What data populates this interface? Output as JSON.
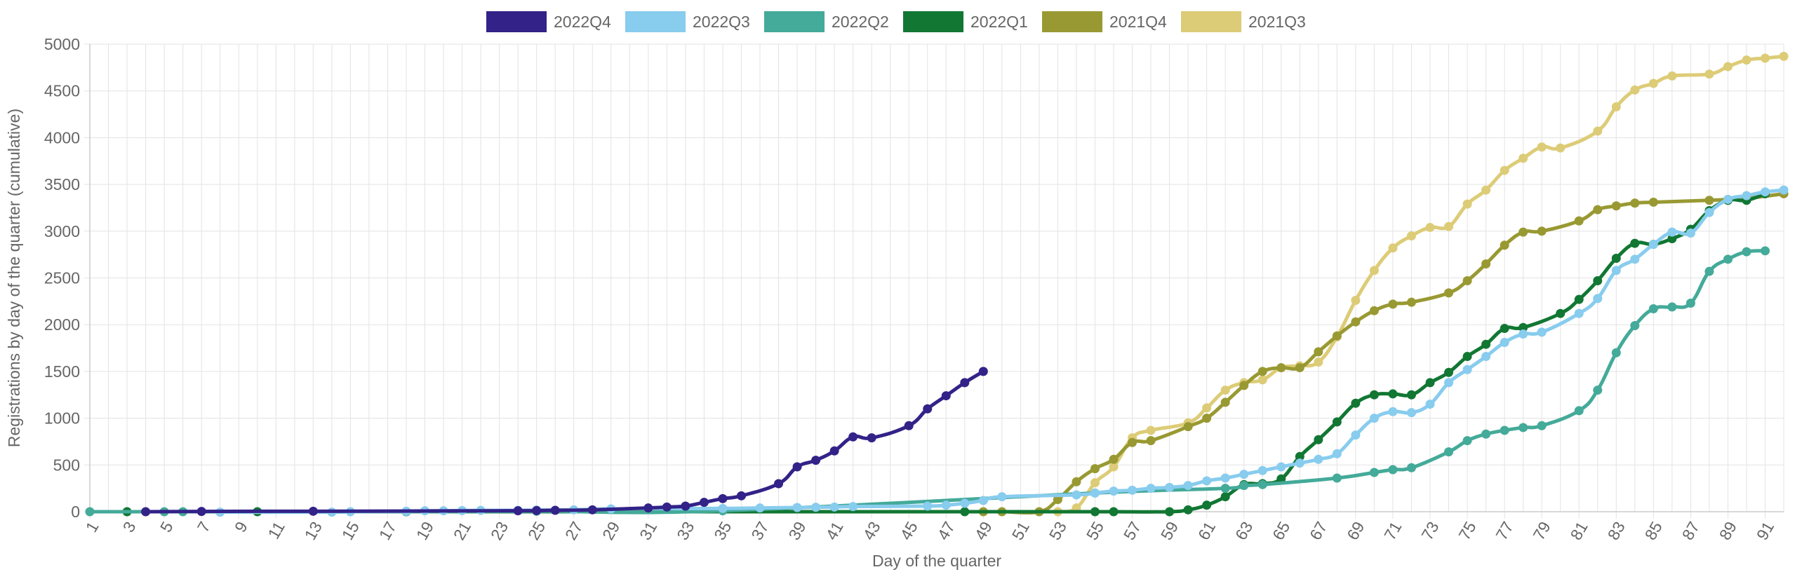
{
  "chart_data": {
    "type": "line",
    "xlabel": "Day of the quarter",
    "ylabel": "Registrations by day of the quarter (cumulative)",
    "xlim": [
      1,
      92
    ],
    "ylim": [
      0,
      5000
    ],
    "x_ticks": [
      "1",
      "3",
      "5",
      "7",
      "9",
      "11",
      "13",
      "15",
      "17",
      "19",
      "21",
      "23",
      "25",
      "27",
      "29",
      "31",
      "33",
      "35",
      "37",
      "39",
      "41",
      "43",
      "45",
      "47",
      "49",
      "51",
      "53",
      "55",
      "57",
      "59",
      "61",
      "63",
      "65",
      "67",
      "69",
      "71",
      "73",
      "75",
      "77",
      "79",
      "81",
      "83",
      "85",
      "87",
      "89",
      "91"
    ],
    "y_ticks": [
      "0",
      "500",
      "1000",
      "1500",
      "2000",
      "2500",
      "3000",
      "3500",
      "4000",
      "4500",
      "5000"
    ],
    "grid": true,
    "legend_position": "top-center",
    "series": [
      {
        "name": "2022Q4",
        "color": "#332288",
        "points": [
          [
            4,
            0
          ],
          [
            7,
            3
          ],
          [
            13,
            5
          ],
          [
            24,
            10
          ],
          [
            25,
            12
          ],
          [
            26,
            15
          ],
          [
            28,
            20
          ],
          [
            31,
            40
          ],
          [
            32,
            50
          ],
          [
            33,
            60
          ],
          [
            34,
            100
          ],
          [
            35,
            140
          ],
          [
            36,
            170
          ],
          [
            38,
            300
          ],
          [
            39,
            480
          ],
          [
            40,
            550
          ],
          [
            41,
            650
          ],
          [
            42,
            800
          ],
          [
            43,
            790
          ],
          [
            45,
            920
          ],
          [
            46,
            1100
          ],
          [
            47,
            1240
          ],
          [
            48,
            1380
          ],
          [
            49,
            1500
          ]
        ]
      },
      {
        "name": "2022Q3",
        "color": "#88ccee",
        "points": [
          [
            8,
            -5
          ],
          [
            14,
            -5
          ],
          [
            15,
            0
          ],
          [
            18,
            5
          ],
          [
            19,
            10
          ],
          [
            20,
            10
          ],
          [
            21,
            12
          ],
          [
            22,
            14
          ],
          [
            24,
            15
          ],
          [
            25,
            18
          ],
          [
            27,
            20
          ],
          [
            29,
            30
          ],
          [
            35,
            35
          ],
          [
            37,
            40
          ],
          [
            39,
            45
          ],
          [
            40,
            48
          ],
          [
            41,
            50
          ],
          [
            42,
            55
          ],
          [
            46,
            60
          ],
          [
            47,
            70
          ],
          [
            48,
            90
          ],
          [
            49,
            120
          ],
          [
            50,
            160
          ],
          [
            54,
            180
          ],
          [
            55,
            200
          ],
          [
            56,
            220
          ],
          [
            57,
            230
          ],
          [
            58,
            250
          ],
          [
            59,
            260
          ],
          [
            60,
            280
          ],
          [
            61,
            330
          ],
          [
            62,
            360
          ],
          [
            63,
            400
          ],
          [
            64,
            440
          ],
          [
            65,
            480
          ],
          [
            66,
            520
          ],
          [
            67,
            560
          ],
          [
            68,
            620
          ],
          [
            69,
            820
          ],
          [
            70,
            1000
          ],
          [
            71,
            1070
          ],
          [
            72,
            1060
          ],
          [
            73,
            1150
          ],
          [
            74,
            1380
          ],
          [
            75,
            1520
          ],
          [
            76,
            1660
          ],
          [
            77,
            1810
          ],
          [
            78,
            1900
          ],
          [
            79,
            1920
          ],
          [
            81,
            2120
          ],
          [
            82,
            2280
          ],
          [
            83,
            2580
          ],
          [
            84,
            2700
          ],
          [
            85,
            2860
          ],
          [
            86,
            2990
          ],
          [
            87,
            2980
          ],
          [
            88,
            3200
          ],
          [
            89,
            3340
          ],
          [
            90,
            3380
          ],
          [
            91,
            3420
          ],
          [
            92,
            3440
          ]
        ]
      },
      {
        "name": "2022Q2",
        "color": "#44aa99",
        "points": [
          [
            1,
            0
          ],
          [
            5,
            0
          ],
          [
            6,
            0
          ],
          [
            18,
            0
          ],
          [
            25,
            5
          ],
          [
            35,
            10
          ],
          [
            55,
            200
          ],
          [
            62,
            250
          ],
          [
            63,
            280
          ],
          [
            64,
            290
          ],
          [
            68,
            360
          ],
          [
            70,
            420
          ],
          [
            71,
            450
          ],
          [
            72,
            470
          ],
          [
            74,
            640
          ],
          [
            75,
            760
          ],
          [
            76,
            830
          ],
          [
            77,
            870
          ],
          [
            78,
            900
          ],
          [
            79,
            920
          ],
          [
            81,
            1080
          ],
          [
            82,
            1300
          ],
          [
            83,
            1700
          ],
          [
            84,
            1990
          ],
          [
            85,
            2170
          ],
          [
            86,
            2190
          ],
          [
            87,
            2230
          ],
          [
            88,
            2570
          ],
          [
            89,
            2700
          ],
          [
            90,
            2780
          ],
          [
            91,
            2790
          ]
        ]
      },
      {
        "name": "2022Q1",
        "color": "#117733",
        "points": [
          [
            3,
            0
          ],
          [
            10,
            0
          ],
          [
            18,
            0
          ],
          [
            48,
            0
          ],
          [
            55,
            0
          ],
          [
            56,
            0
          ],
          [
            59,
            0
          ],
          [
            60,
            20
          ],
          [
            61,
            70
          ],
          [
            62,
            160
          ],
          [
            63,
            290
          ],
          [
            64,
            300
          ],
          [
            65,
            350
          ],
          [
            66,
            590
          ],
          [
            67,
            770
          ],
          [
            68,
            960
          ],
          [
            69,
            1160
          ],
          [
            70,
            1250
          ],
          [
            71,
            1260
          ],
          [
            72,
            1250
          ],
          [
            73,
            1380
          ],
          [
            74,
            1490
          ],
          [
            75,
            1660
          ],
          [
            76,
            1790
          ],
          [
            77,
            1960
          ],
          [
            78,
            1970
          ],
          [
            80,
            2120
          ],
          [
            81,
            2270
          ],
          [
            82,
            2470
          ],
          [
            83,
            2710
          ],
          [
            84,
            2870
          ],
          [
            85,
            2860
          ],
          [
            86,
            2920
          ],
          [
            87,
            3020
          ],
          [
            88,
            3220
          ],
          [
            89,
            3330
          ],
          [
            90,
            3330
          ],
          [
            91,
            3400
          ]
        ]
      },
      {
        "name": "2021Q4",
        "color": "#999933",
        "points": [
          [
            49,
            0
          ],
          [
            50,
            0
          ],
          [
            52,
            0
          ],
          [
            53,
            130
          ],
          [
            54,
            320
          ],
          [
            55,
            460
          ],
          [
            56,
            560
          ],
          [
            57,
            740
          ],
          [
            58,
            760
          ],
          [
            60,
            910
          ],
          [
            61,
            1000
          ],
          [
            62,
            1170
          ],
          [
            63,
            1350
          ],
          [
            64,
            1500
          ],
          [
            65,
            1540
          ],
          [
            66,
            1540
          ],
          [
            67,
            1710
          ],
          [
            68,
            1880
          ],
          [
            69,
            2030
          ],
          [
            70,
            2150
          ],
          [
            71,
            2220
          ],
          [
            72,
            2240
          ],
          [
            74,
            2340
          ],
          [
            75,
            2470
          ],
          [
            76,
            2650
          ],
          [
            77,
            2850
          ],
          [
            78,
            2990
          ],
          [
            79,
            3000
          ],
          [
            81,
            3110
          ],
          [
            82,
            3230
          ],
          [
            83,
            3270
          ],
          [
            84,
            3300
          ],
          [
            85,
            3310
          ],
          [
            88,
            3330
          ],
          [
            89,
            3340
          ],
          [
            90,
            3350
          ],
          [
            92,
            3400
          ]
        ]
      },
      {
        "name": "2021Q3",
        "color": "#ddcc77",
        "points": [
          [
            53,
            0
          ],
          [
            54,
            40
          ],
          [
            55,
            310
          ],
          [
            56,
            480
          ],
          [
            57,
            790
          ],
          [
            58,
            870
          ],
          [
            60,
            950
          ],
          [
            61,
            1110
          ],
          [
            62,
            1300
          ],
          [
            63,
            1380
          ],
          [
            64,
            1410
          ],
          [
            65,
            1540
          ],
          [
            66,
            1560
          ],
          [
            67,
            1600
          ],
          [
            68,
            1870
          ],
          [
            69,
            2260
          ],
          [
            70,
            2580
          ],
          [
            71,
            2820
          ],
          [
            72,
            2950
          ],
          [
            73,
            3040
          ],
          [
            74,
            3050
          ],
          [
            75,
            3290
          ],
          [
            76,
            3440
          ],
          [
            77,
            3650
          ],
          [
            78,
            3780
          ],
          [
            79,
            3900
          ],
          [
            80,
            3890
          ],
          [
            82,
            4070
          ],
          [
            83,
            4330
          ],
          [
            84,
            4510
          ],
          [
            85,
            4580
          ],
          [
            86,
            4660
          ],
          [
            88,
            4680
          ],
          [
            89,
            4760
          ],
          [
            90,
            4830
          ],
          [
            91,
            4850
          ],
          [
            92,
            4870
          ]
        ]
      }
    ]
  }
}
